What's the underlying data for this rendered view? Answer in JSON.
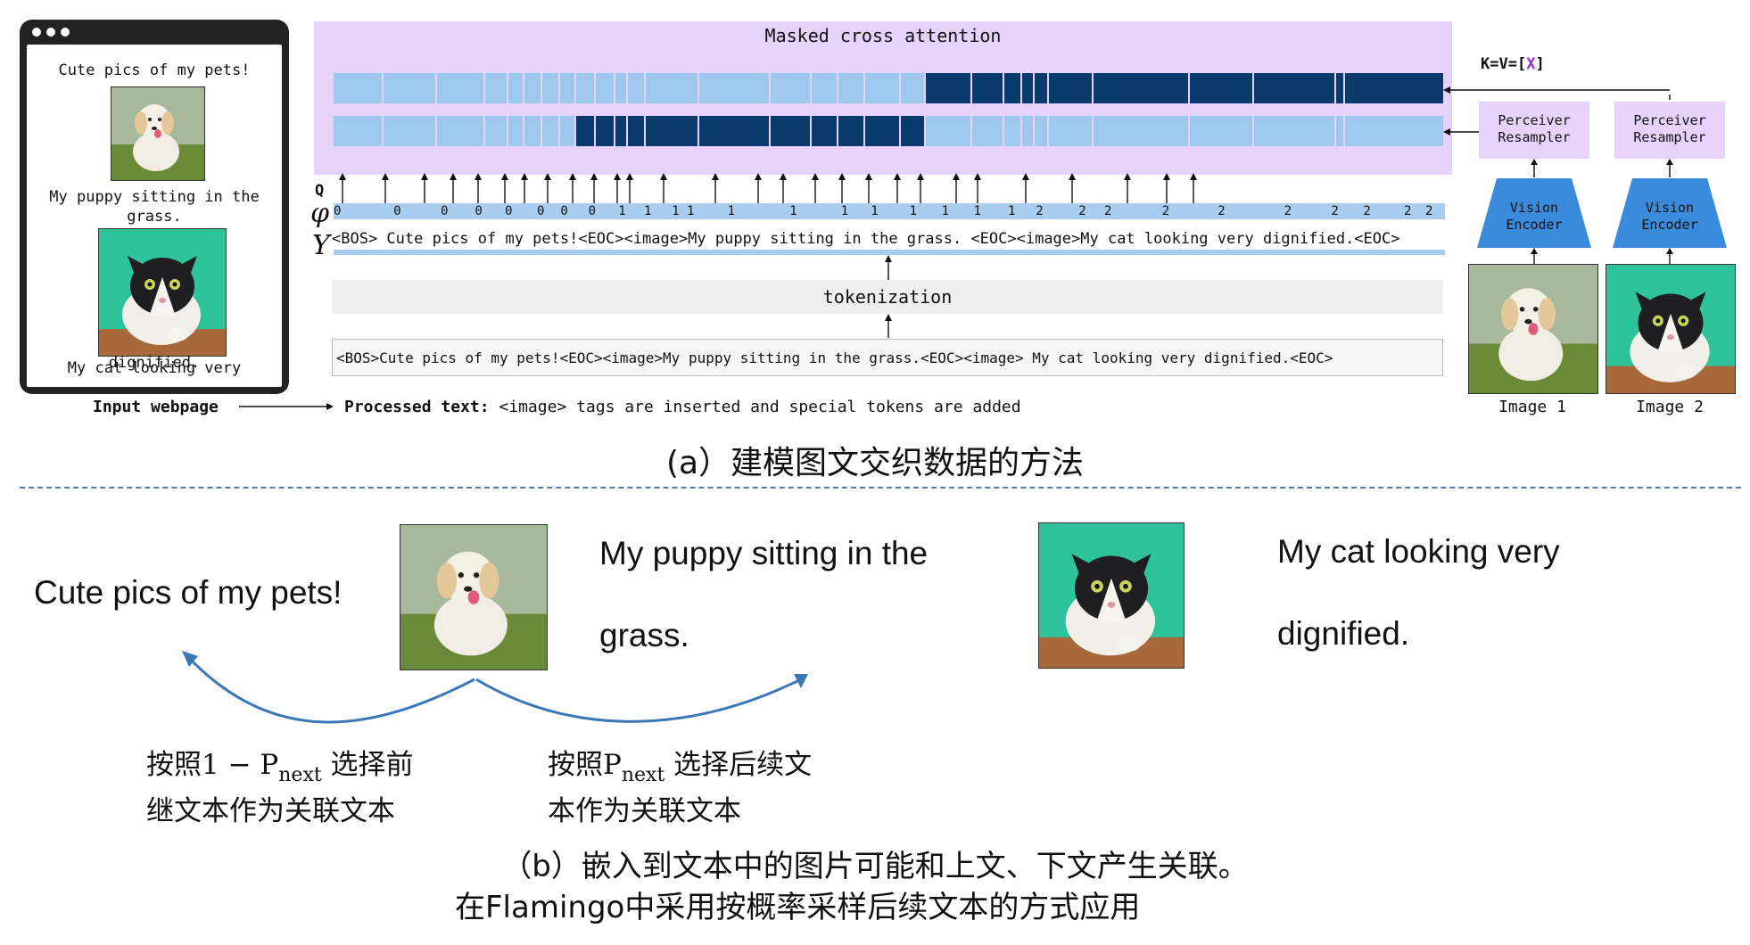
{
  "browser": {
    "line1": "Cute pics of my pets!",
    "line2a": "My puppy sitting in the",
    "line2b": "grass.",
    "line3a": "My cat looking very",
    "line3b": "dignified."
  },
  "attention_title": "Masked cross attention",
  "kv_label": "K=V=[",
  "kv_x": "X",
  "kv_close": "]",
  "labels": {
    "q": "Q",
    "phi": "φ",
    "y": "Y"
  },
  "phi_values": [
    "0",
    "0",
    "0",
    "0",
    "0",
    "0",
    "0",
    "0",
    "1",
    "1",
    "1",
    "1",
    "1",
    "1",
    "1",
    "1",
    "1",
    "1",
    "1",
    "1",
    "2",
    "2",
    "2",
    "2",
    "2",
    "2",
    "2",
    "2",
    "2",
    "2"
  ],
  "y_text": "<BOS> Cute pics of my pets!<EOC><image>My puppy sitting in the grass. <EOC><image>My cat looking very dignified.<EOC>",
  "tokenization": "tokenization",
  "raw_text": "<BOS>Cute pics of my pets!<EOC><image>My puppy sitting in the grass.<EOC><image> My cat looking very dignified.<EOC>",
  "right_panel": {
    "resampler_1": "Perceiver\nResampler",
    "resampler_2": "Perceiver\nResampler",
    "encoder_1": "Vision\nEncoder",
    "encoder_2": "Vision\nEncoder",
    "image_1": "Image 1",
    "image_2": "Image 2"
  },
  "input_webpage": "Input webpage",
  "processed_bold": "Processed text:",
  "processed_rest": " <image> tags are inserted and special tokens are added",
  "caption_a": "(a）建模图文交织数据的方法",
  "part_b": {
    "text1": "Cute pics of my pets!",
    "text2a": "My puppy sitting in the",
    "text2b": "grass.",
    "text3a": "My cat looking very",
    "text3b": "dignified.",
    "left_note_pre": "按照1 − P",
    "left_note_sub": "next",
    "left_note_post": " 选择前",
    "left_note_line2": "继文本作为关联文本",
    "right_note_pre": "按照P",
    "right_note_sub": "next",
    "right_note_post": " 选择后续文",
    "right_note_line2": "本作为关联文本",
    "caption_b1": "（b）嵌入到文本中的图片可能和上文、下文产生关联。",
    "caption_b2": "在Flamingo中采用按概率采样后续文本的方式应用"
  },
  "colors": {
    "light_token": "#9ec8ee",
    "dark_token": "#0a3a6b",
    "attn_bg": "#e6d2fb",
    "encoder": "#3b8bdc",
    "arrow_blue": "#3a76b8",
    "kv_x": "#9b27d9"
  }
}
